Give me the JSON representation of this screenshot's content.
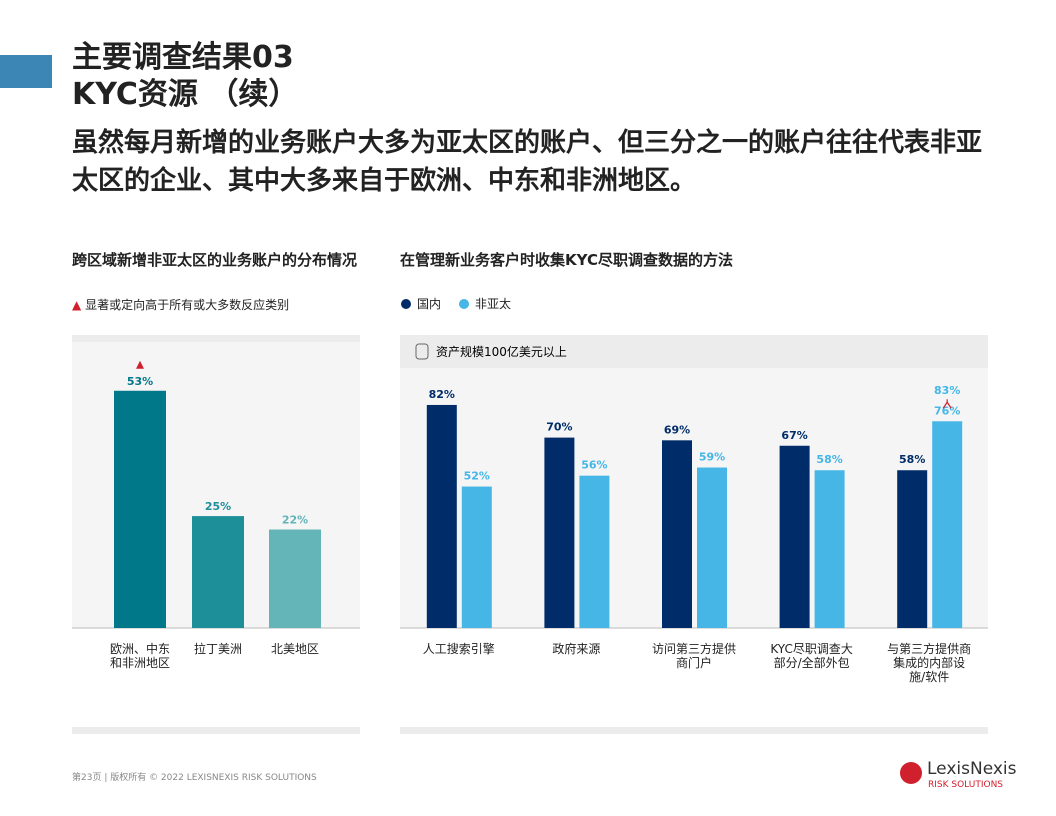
{
  "header": {
    "title_line1": "主要调查结果03",
    "title_line2": "KYC资源 （续）",
    "subtitle": "虽然每月新增的业务账户大多为亚太区的账户、但三分之一的账户往往代表非亚太区的企业、其中大多来自于欧洲、中东和非洲地区。"
  },
  "chart_data": [
    {
      "type": "bar",
      "title": "跨区域新增非亚太区的业务账户的分布情况",
      "note": "显著或定向高于所有或大多数反应类别",
      "categories": [
        "欧洲、中东和非洲地区",
        "拉丁美洲",
        "北美地区"
      ],
      "values": [
        53,
        25,
        22
      ],
      "value_labels": [
        "53%",
        "25%",
        "22%"
      ],
      "colors": [
        "#00788a",
        "#1c8f99",
        "#63b5b8"
      ],
      "significant": [
        true,
        false,
        false
      ],
      "ylim": [
        0,
        63
      ]
    },
    {
      "type": "grouped_bar",
      "title": "在管理新业务客户时收集KYC尽职调查数据的方法",
      "subtitle": "资产规模100亿美元以上",
      "categories": [
        "人工搜索引擎",
        "政府来源",
        "访问第三方提供商门户",
        "KYC尽职调查大部分/全部外包",
        "与第三方提供商集成的内部设施/软件"
      ],
      "series": [
        {
          "name": "国内",
          "color": "#002d6a",
          "values": [
            82,
            70,
            69,
            67,
            58
          ],
          "value_labels": [
            "82%",
            "70%",
            "69%",
            "67%",
            "58%"
          ]
        },
        {
          "name": "非亚太",
          "color": "#45b6e6",
          "values": [
            52,
            56,
            59,
            58,
            76
          ],
          "value_labels": [
            "52%",
            "56%",
            "59%",
            "58%",
            "76%"
          ]
        }
      ],
      "highlight": {
        "value": 83,
        "label": "83%"
      },
      "ylim": [
        0,
        100
      ]
    }
  ],
  "footer": {
    "page": "第23页 | 版权所有 © 2022 LEXISNEXIS RISK SOLUTIONS",
    "logo": "LexisNexis",
    "logo_sub": "RISK SOLUTIONS"
  }
}
